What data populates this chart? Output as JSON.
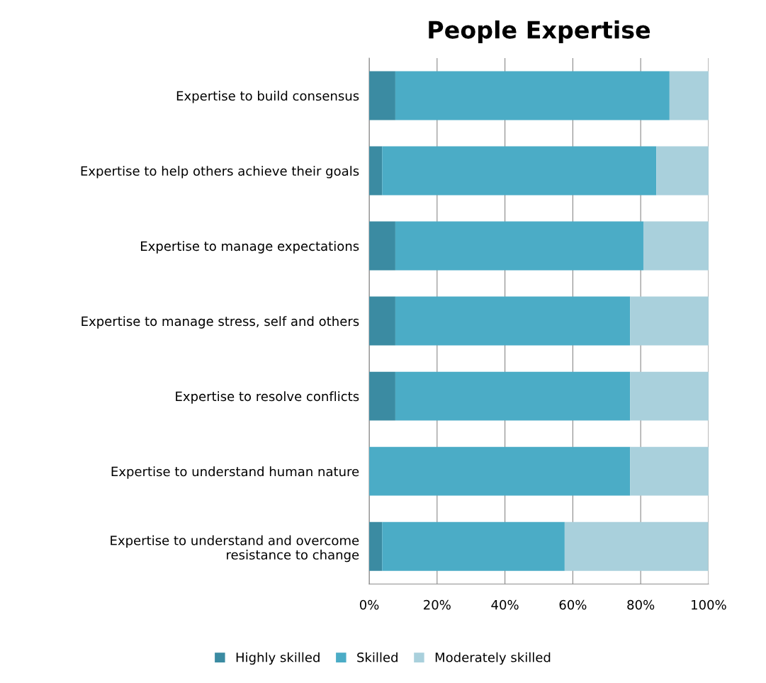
{
  "chart_data": {
    "type": "bar",
    "orientation": "horizontal",
    "stacked": true,
    "title": "People Expertise",
    "categories": [
      "Expertise to build consensus",
      "Expertise to help others achieve their goals",
      "Expertise to manage expectations",
      "Expertise to manage stress, self and others",
      "Expertise to resolve conflicts",
      "Expertise to understand human nature",
      "Expertise to understand and overcome\nresistance to change"
    ],
    "series": [
      {
        "name": "Highly skilled",
        "color": "#3b8ba2",
        "values": [
          7.7,
          3.8,
          7.7,
          7.7,
          7.7,
          0,
          3.8
        ]
      },
      {
        "name": "Skilled",
        "color": "#4bacc6",
        "values": [
          80.8,
          80.8,
          73.1,
          69.2,
          69.2,
          76.9,
          53.8
        ]
      },
      {
        "name": "Moderately skilled",
        "color": "#a9d0dc",
        "values": [
          11.5,
          15.4,
          19.2,
          23.1,
          23.1,
          23.1,
          42.3
        ]
      }
    ],
    "xlim": [
      0,
      100
    ],
    "xticks": [
      {
        "value": 0,
        "label": "0%"
      },
      {
        "value": 20,
        "label": "20%"
      },
      {
        "value": 40,
        "label": "40%"
      },
      {
        "value": 60,
        "label": "60%"
      },
      {
        "value": 80,
        "label": "80%"
      },
      {
        "value": 100,
        "label": "100%"
      }
    ],
    "grid": "x",
    "legend": "bottom"
  }
}
